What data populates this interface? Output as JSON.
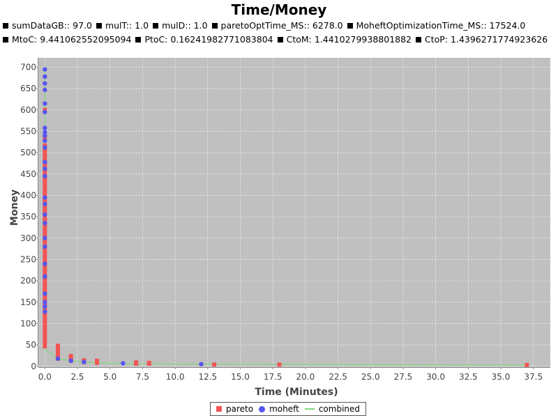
{
  "chart_data": {
    "type": "scatter",
    "title": "Time/Money",
    "subtitles": [
      [
        "sumDataGB:: 97.0",
        "mulT:: 1.0",
        "mulD:: 1.0",
        "paretoOptTime_MS:: 6278.0",
        "MoheftOptimizationTime_MS:: 17524.0"
      ],
      [
        "MtoC: 9.441062552095094",
        "PtoC: 0.16241982771083804",
        "CtoM: 1.4410279938801882",
        "CtoP: 1.4396271774923626"
      ]
    ],
    "xlabel": "Time (Minutes)",
    "ylabel": "Money",
    "xlim": [
      -0.5,
      38.8
    ],
    "ylim": [
      -2,
      722
    ],
    "xticks": [
      0,
      2.5,
      5,
      7.5,
      10,
      12.5,
      15,
      17.5,
      20,
      22.5,
      25,
      27.5,
      30,
      32.5,
      35,
      37.5
    ],
    "xtick_labels": [
      "0.0",
      "2.5",
      "5.0",
      "7.5",
      "10.0",
      "12.5",
      "15.0",
      "17.5",
      "20.0",
      "22.5",
      "25.0",
      "27.5",
      "30.0",
      "32.5",
      "35.0",
      "37.5"
    ],
    "yticks": [
      0,
      50,
      100,
      150,
      200,
      250,
      300,
      350,
      400,
      450,
      500,
      550,
      600,
      650,
      700
    ],
    "ytick_labels": [
      "0",
      "50",
      "100",
      "150",
      "200",
      "250",
      "300",
      "350",
      "400",
      "450",
      "500",
      "550",
      "600",
      "650",
      "700"
    ],
    "grid": true,
    "plot_background": "#c0c0c0",
    "legend_position": "bottom",
    "series": [
      {
        "name": "pareto",
        "marker": "square",
        "color": "#f25555",
        "points": [
          [
            0,
            47
          ],
          [
            0,
            55
          ],
          [
            0,
            64
          ],
          [
            0,
            73
          ],
          [
            0,
            81
          ],
          [
            0,
            90
          ],
          [
            0,
            98
          ],
          [
            0,
            107
          ],
          [
            0,
            116
          ],
          [
            0,
            124
          ],
          [
            0,
            133
          ],
          [
            0,
            142
          ],
          [
            0,
            150
          ],
          [
            0,
            159
          ],
          [
            0,
            168
          ],
          [
            0,
            176
          ],
          [
            0,
            185
          ],
          [
            0,
            194
          ],
          [
            0,
            202
          ],
          [
            0,
            211
          ],
          [
            0,
            220
          ],
          [
            0,
            228
          ],
          [
            0,
            237
          ],
          [
            0,
            246
          ],
          [
            0,
            254
          ],
          [
            0,
            263
          ],
          [
            0,
            272
          ],
          [
            0,
            281
          ],
          [
            0,
            289
          ],
          [
            0,
            298
          ],
          [
            0,
            307
          ],
          [
            0,
            316
          ],
          [
            0,
            324
          ],
          [
            0,
            333
          ],
          [
            0,
            342
          ],
          [
            0,
            351
          ],
          [
            0,
            360
          ],
          [
            0,
            368
          ],
          [
            0,
            377
          ],
          [
            0,
            386
          ],
          [
            0,
            395
          ],
          [
            0,
            403
          ],
          [
            0,
            412
          ],
          [
            0,
            421
          ],
          [
            0,
            430
          ],
          [
            0,
            438
          ],
          [
            0,
            447
          ],
          [
            0,
            456
          ],
          [
            0,
            465
          ],
          [
            0,
            473
          ],
          [
            0,
            482
          ],
          [
            0,
            491
          ],
          [
            0,
            500
          ],
          [
            0,
            508
          ],
          [
            0,
            517
          ],
          [
            0,
            535
          ],
          [
            0,
            600
          ],
          [
            1,
            18
          ],
          [
            1,
            25
          ],
          [
            1,
            33
          ],
          [
            1,
            40
          ],
          [
            1,
            48
          ],
          [
            2,
            13
          ],
          [
            2,
            19
          ],
          [
            2,
            24
          ],
          [
            3,
            10
          ],
          [
            3,
            14
          ],
          [
            4,
            8
          ],
          [
            4,
            13
          ],
          [
            7,
            6
          ],
          [
            7,
            9
          ],
          [
            8,
            6
          ],
          [
            8,
            8
          ],
          [
            13,
            4
          ],
          [
            18,
            4
          ],
          [
            37,
            3
          ]
        ]
      },
      {
        "name": "moheft",
        "marker": "circle",
        "color": "#5555f2",
        "points": [
          [
            0,
            695
          ],
          [
            0,
            678
          ],
          [
            0,
            662
          ],
          [
            0,
            647
          ],
          [
            0,
            615
          ],
          [
            0,
            595
          ],
          [
            0,
            558
          ],
          [
            0,
            548
          ],
          [
            0,
            540
          ],
          [
            0,
            528
          ],
          [
            0,
            512
          ],
          [
            0,
            478
          ],
          [
            0,
            462
          ],
          [
            0,
            445
          ],
          [
            0,
            395
          ],
          [
            0,
            380
          ],
          [
            0,
            355
          ],
          [
            0,
            335
          ],
          [
            0,
            300
          ],
          [
            0,
            280
          ],
          [
            0,
            240
          ],
          [
            0,
            210
          ],
          [
            0,
            170
          ],
          [
            0,
            150
          ],
          [
            0,
            140
          ],
          [
            0,
            128
          ],
          [
            1,
            18
          ],
          [
            2,
            13
          ],
          [
            3,
            10
          ],
          [
            6,
            7
          ],
          [
            12,
            5
          ]
        ]
      },
      {
        "name": "combined",
        "marker": "line",
        "color": "#7dd87d",
        "points": [
          [
            0,
            700
          ],
          [
            0,
            40
          ],
          [
            1,
            18
          ],
          [
            2,
            13
          ],
          [
            3,
            10
          ],
          [
            5,
            7
          ],
          [
            10,
            5
          ],
          [
            20,
            4
          ],
          [
            37,
            3
          ]
        ]
      }
    ]
  }
}
